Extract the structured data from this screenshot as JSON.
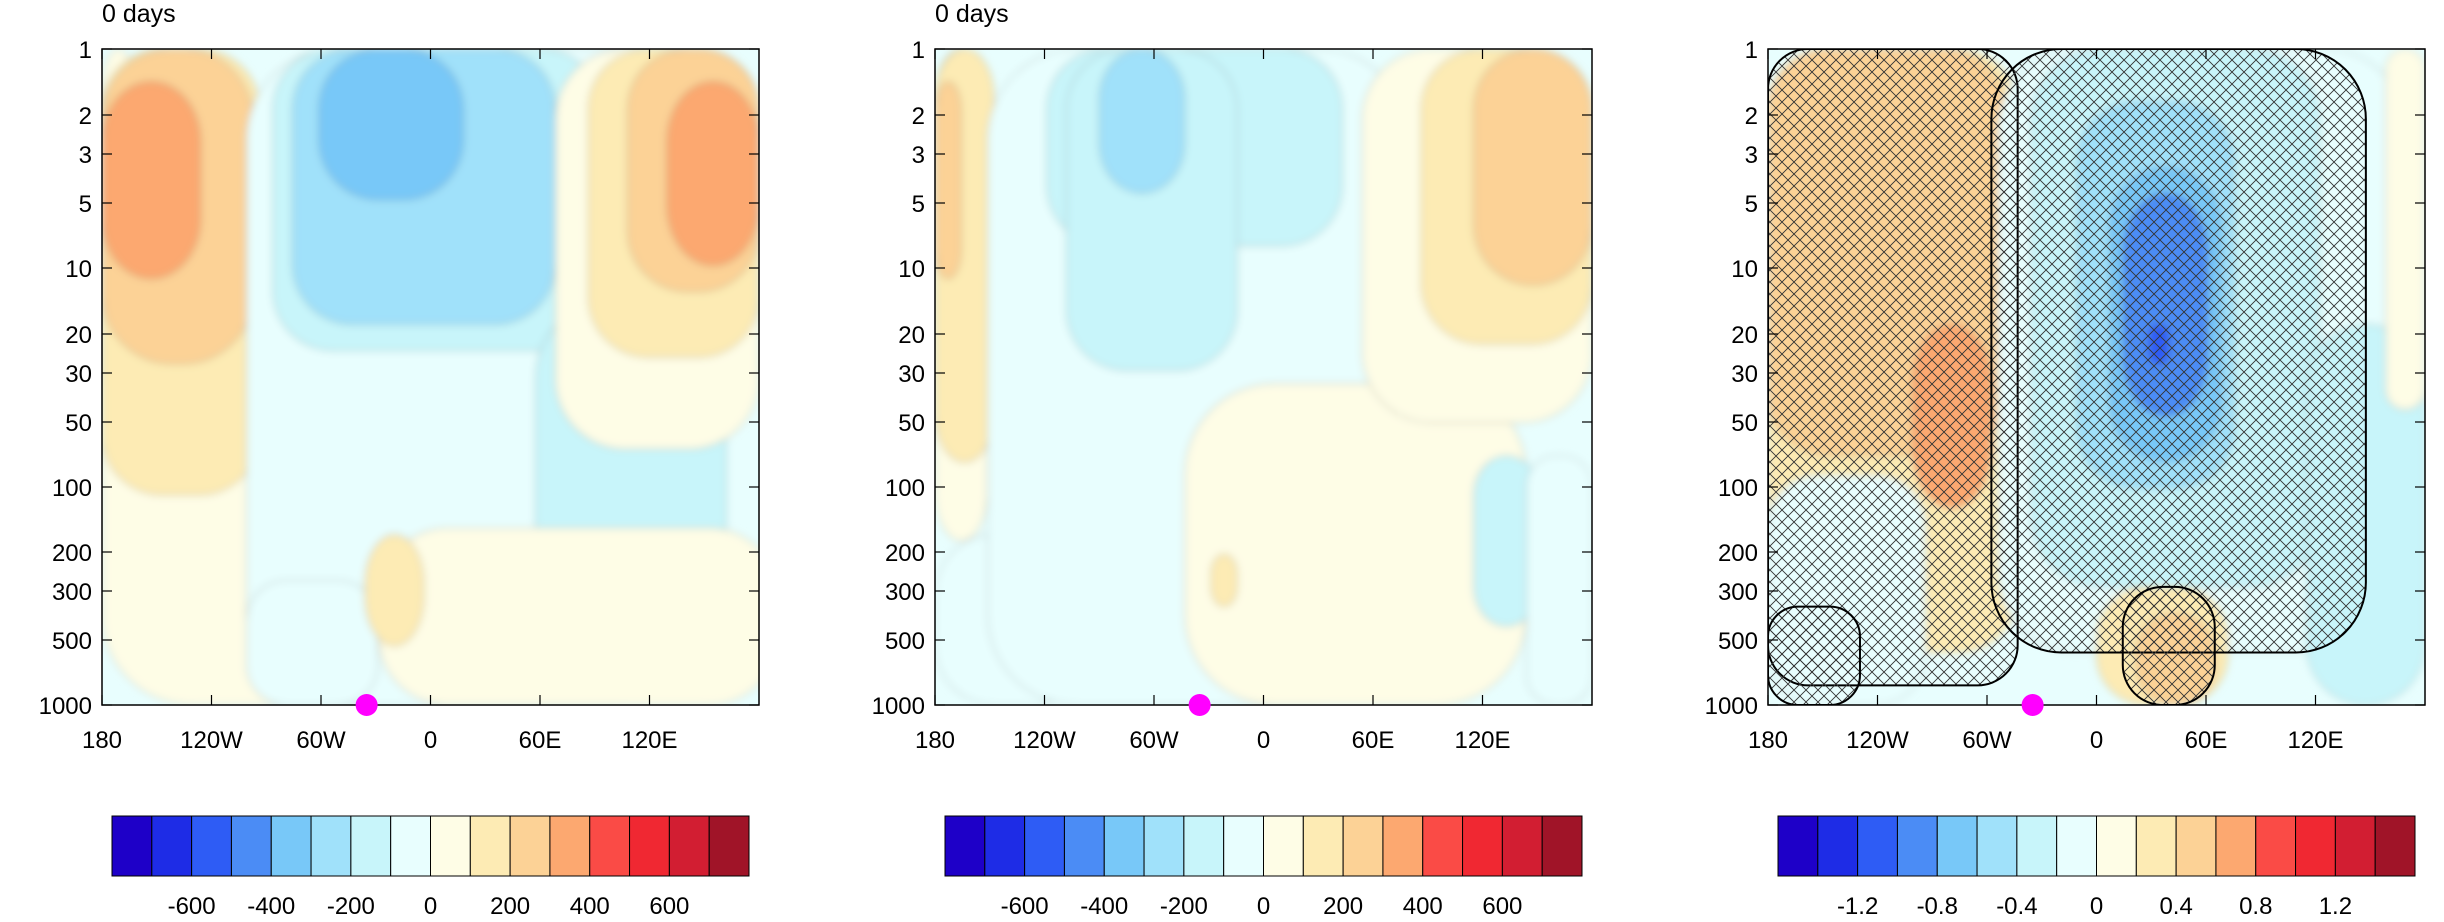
{
  "chart_data": [
    {
      "type": "heatmap",
      "title": "0 days",
      "xlabel": "",
      "ylabel": "",
      "x_ticks": [
        "180",
        "120W",
        "60W",
        "0",
        "60E",
        "120E"
      ],
      "y_ticks": [
        "1",
        "2",
        "3",
        "5",
        "10",
        "20",
        "30",
        "50",
        "100",
        "200",
        "300",
        "500",
        "1000"
      ],
      "y_scale": "log",
      "y_reversed": true,
      "marker": {
        "x": "~35W",
        "y": 1000,
        "color": "#ff00ff"
      },
      "colorbar": {
        "colors": [
          "#1e00c8",
          "#1e2ce6",
          "#2e5cf5",
          "#4b8cf5",
          "#78c8f8",
          "#a0e1fa",
          "#c8f5fa",
          "#e8fefe",
          "#fefde6",
          "#fdebb4",
          "#fcd296",
          "#fca870",
          "#fa4b46",
          "#f02832",
          "#d21e32",
          "#a01428"
        ],
        "labels": [
          "-600",
          "-400",
          "-200",
          "0",
          "200",
          "400",
          "600"
        ]
      },
      "shading": [
        {
          "l": 0.0,
          "t": 0.0,
          "w": 0.05,
          "h": 0.56,
          "c": 8,
          "r": 40
        },
        {
          "l": 0.0,
          "t": 0.48,
          "w": 0.4,
          "h": 0.52,
          "c": 8,
          "r": 90
        },
        {
          "l": 0.0,
          "t": 0.0,
          "w": 0.24,
          "h": 0.68,
          "c": 9,
          "r": 60
        },
        {
          "l": 0.0,
          "t": 0.0,
          "w": 0.23,
          "h": 0.48,
          "c": 10,
          "r": 70
        },
        {
          "l": 0.0,
          "t": 0.05,
          "w": 0.15,
          "h": 0.3,
          "c": 11,
          "r": 60
        },
        {
          "l": 0.22,
          "t": 0.0,
          "w": 0.7,
          "h": 1.0,
          "c": 7,
          "r": 90
        },
        {
          "l": 0.26,
          "t": 0.0,
          "w": 0.5,
          "h": 0.46,
          "c": 6,
          "r": 60
        },
        {
          "l": 0.66,
          "t": 0.38,
          "w": 0.29,
          "h": 0.54,
          "c": 6,
          "r": 80
        },
        {
          "l": 0.29,
          "t": 0.0,
          "w": 0.4,
          "h": 0.42,
          "c": 5,
          "r": 60
        },
        {
          "l": 0.33,
          "t": 0.0,
          "w": 0.22,
          "h": 0.23,
          "c": 4,
          "r": 60
        },
        {
          "l": 0.22,
          "t": 0.81,
          "w": 0.2,
          "h": 0.19,
          "c": 7,
          "r": 40
        },
        {
          "l": 0.42,
          "t": 0.73,
          "w": 0.61,
          "h": 0.27,
          "c": 8,
          "r": 70
        },
        {
          "l": 0.69,
          "t": 0.0,
          "w": 0.31,
          "h": 0.61,
          "c": 8,
          "r": 70
        },
        {
          "l": 0.74,
          "t": 0.0,
          "w": 0.26,
          "h": 0.47,
          "c": 9,
          "r": 60
        },
        {
          "l": 0.8,
          "t": 0.0,
          "w": 0.2,
          "h": 0.37,
          "c": 10,
          "r": 60
        },
        {
          "l": 0.86,
          "t": 0.05,
          "w": 0.14,
          "h": 0.28,
          "c": 11,
          "r": 60
        },
        {
          "l": 0.4,
          "t": 0.74,
          "w": 0.09,
          "h": 0.17,
          "c": 9,
          "r": 50
        }
      ]
    },
    {
      "type": "heatmap",
      "title": "0 days",
      "xlabel": "",
      "ylabel": "",
      "x_ticks": [
        "180",
        "120W",
        "60W",
        "0",
        "60E",
        "120E"
      ],
      "y_ticks": [
        "1",
        "2",
        "3",
        "5",
        "10",
        "20",
        "30",
        "50",
        "100",
        "200",
        "300",
        "500",
        "1000"
      ],
      "y_scale": "log",
      "y_reversed": true,
      "marker": {
        "x": "~35W",
        "y": 1000,
        "color": "#ff00ff"
      },
      "colorbar": {
        "colors": [
          "#1e00c8",
          "#1e2ce6",
          "#2e5cf5",
          "#4b8cf5",
          "#78c8f8",
          "#a0e1fa",
          "#c8f5fa",
          "#e8fefe",
          "#fefde6",
          "#fdebb4",
          "#fcd296",
          "#fca870",
          "#fa4b46",
          "#f02832",
          "#d21e32",
          "#a01428"
        ],
        "labels": [
          "-600",
          "-400",
          "-200",
          "0",
          "200",
          "400",
          "600"
        ]
      },
      "shading": [
        {
          "l": 0.0,
          "t": 0.0,
          "w": 0.08,
          "h": 0.75,
          "c": 8,
          "r": 50
        },
        {
          "l": 0.0,
          "t": 0.0,
          "w": 0.09,
          "h": 0.63,
          "c": 9,
          "r": 50
        },
        {
          "l": 0.0,
          "t": 0.05,
          "w": 0.04,
          "h": 0.3,
          "c": 10,
          "r": 30
        },
        {
          "l": 0.0,
          "t": 0.74,
          "w": 0.24,
          "h": 0.26,
          "c": 7,
          "r": 60
        },
        {
          "l": 0.08,
          "t": 0.0,
          "w": 0.64,
          "h": 1.0,
          "c": 7,
          "r": 90
        },
        {
          "l": 0.17,
          "t": 0.0,
          "w": 0.45,
          "h": 0.3,
          "c": 6,
          "r": 60
        },
        {
          "l": 0.2,
          "t": 0.0,
          "w": 0.26,
          "h": 0.49,
          "c": 6,
          "r": 60
        },
        {
          "l": 0.25,
          "t": 0.0,
          "w": 0.13,
          "h": 0.22,
          "c": 5,
          "r": 50
        },
        {
          "l": 0.38,
          "t": 0.51,
          "w": 0.52,
          "h": 0.49,
          "c": 8,
          "r": 90
        },
        {
          "l": 0.65,
          "t": 0.0,
          "w": 0.35,
          "h": 0.57,
          "c": 8,
          "r": 70
        },
        {
          "l": 0.74,
          "t": 0.0,
          "w": 0.26,
          "h": 0.45,
          "c": 9,
          "r": 60
        },
        {
          "l": 0.82,
          "t": 0.0,
          "w": 0.18,
          "h": 0.36,
          "c": 10,
          "r": 60
        },
        {
          "l": 0.82,
          "t": 0.62,
          "w": 0.1,
          "h": 0.26,
          "c": 6,
          "r": 40
        },
        {
          "l": 0.9,
          "t": 0.62,
          "w": 0.1,
          "h": 0.38,
          "c": 7,
          "r": 30
        },
        {
          "l": 0.42,
          "t": 0.77,
          "w": 0.04,
          "h": 0.08,
          "c": 9,
          "r": 20
        }
      ]
    },
    {
      "type": "heatmap",
      "title": "",
      "xlabel": "",
      "ylabel": "",
      "x_ticks": [
        "180",
        "120W",
        "60W",
        "0",
        "60E",
        "120E"
      ],
      "y_ticks": [
        "1",
        "2",
        "3",
        "5",
        "10",
        "20",
        "30",
        "50",
        "100",
        "200",
        "300",
        "500",
        "1000"
      ],
      "y_scale": "log",
      "y_reversed": true,
      "hatched": true,
      "marker": {
        "x": "~35W",
        "y": 1000,
        "color": "#ff00ff"
      },
      "colorbar": {
        "colors": [
          "#1e00c8",
          "#1e2ce6",
          "#2e5cf5",
          "#4b8cf5",
          "#78c8f8",
          "#a0e1fa",
          "#c8f5fa",
          "#e8fefe",
          "#fefde6",
          "#fdebb4",
          "#fcd296",
          "#fca870",
          "#fa4b46",
          "#f02832",
          "#d21e32",
          "#a01428"
        ],
        "labels": [
          "-1.2",
          "-0.8",
          "-0.4",
          "0",
          "0.4",
          "0.8",
          "1.2"
        ]
      },
      "shading": [
        {
          "l": 0.0,
          "t": 0.0,
          "w": 0.38,
          "h": 0.92,
          "c": 9,
          "r": 60
        },
        {
          "l": 0.0,
          "t": 0.0,
          "w": 0.36,
          "h": 0.62,
          "c": 10,
          "r": 60
        },
        {
          "l": 0.22,
          "t": 0.42,
          "w": 0.12,
          "h": 0.28,
          "c": 11,
          "r": 60
        },
        {
          "l": 0.0,
          "t": 0.65,
          "w": 0.24,
          "h": 0.35,
          "c": 7,
          "r": 50
        },
        {
          "l": 0.35,
          "t": 0.0,
          "w": 0.62,
          "h": 0.92,
          "c": 7,
          "r": 80
        },
        {
          "l": 0.4,
          "t": 0.0,
          "w": 0.44,
          "h": 0.82,
          "c": 6,
          "r": 70
        },
        {
          "l": 0.47,
          "t": 0.08,
          "w": 0.24,
          "h": 0.59,
          "c": 5,
          "r": 60
        },
        {
          "l": 0.52,
          "t": 0.18,
          "w": 0.17,
          "h": 0.45,
          "c": 4,
          "r": 60
        },
        {
          "l": 0.54,
          "t": 0.22,
          "w": 0.13,
          "h": 0.34,
          "c": 3,
          "r": 60
        },
        {
          "l": 0.58,
          "t": 0.42,
          "w": 0.03,
          "h": 0.06,
          "c": 2,
          "r": 10
        },
        {
          "l": 0.82,
          "t": 0.42,
          "w": 0.18,
          "h": 0.58,
          "c": 6,
          "r": 60
        },
        {
          "l": 0.5,
          "t": 0.82,
          "w": 0.2,
          "h": 0.18,
          "c": 9,
          "r": 50
        },
        {
          "l": 0.56,
          "t": 0.86,
          "w": 0.12,
          "h": 0.14,
          "c": 10,
          "r": 40
        },
        {
          "l": 0.94,
          "t": 0.0,
          "w": 0.06,
          "h": 0.55,
          "c": 8,
          "r": 20
        }
      ],
      "hatch": [
        {
          "l": 0.0,
          "t": 0.0,
          "w": 0.38,
          "h": 0.97,
          "r": 40
        },
        {
          "l": 0.34,
          "t": 0.0,
          "w": 0.57,
          "h": 0.92,
          "r": 70
        },
        {
          "l": 0.0,
          "t": 0.85,
          "w": 0.14,
          "h": 0.15,
          "r": 30
        },
        {
          "l": 0.54,
          "t": 0.82,
          "w": 0.14,
          "h": 0.18,
          "r": 40
        }
      ]
    }
  ]
}
